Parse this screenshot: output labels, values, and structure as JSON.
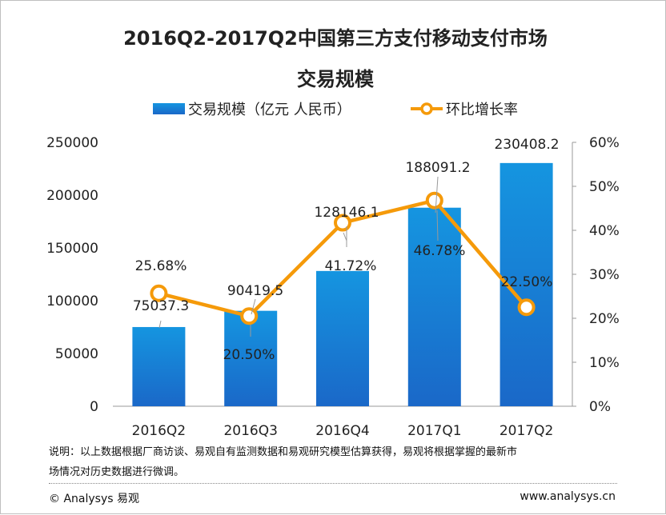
{
  "chart_data": {
    "type": "bar+line",
    "title_line1": "2016Q2-2017Q2中国第三方支付移动支付市场",
    "title_line2": "交易规模",
    "categories": [
      "2016Q2",
      "2016Q3",
      "2016Q4",
      "2017Q1",
      "2017Q2"
    ],
    "series": [
      {
        "name": "交易规模（亿元 人民币）",
        "type": "bar",
        "axis": "left",
        "values": [
          75037.3,
          90419.5,
          128146.1,
          188091.2,
          230408.2
        ],
        "labels": [
          "75037.3",
          "90419.5",
          "128146.1",
          "188091.2",
          "230408.2"
        ],
        "color": "#1a7fd4"
      },
      {
        "name": "环比增长率",
        "type": "line",
        "axis": "right",
        "values": [
          25.68,
          20.5,
          41.72,
          46.78,
          22.5
        ],
        "labels": [
          "25.68%",
          "20.50%",
          "41.72%",
          "46.78%",
          "22.50%"
        ],
        "color": "#f59a0a"
      }
    ],
    "left_axis": {
      "ylim": [
        0,
        250000
      ],
      "ticks": [
        "0",
        "50000",
        "100000",
        "150000",
        "200000",
        "250000"
      ]
    },
    "right_axis": {
      "ylim": [
        0,
        60
      ],
      "ticks": [
        "0%",
        "10%",
        "20%",
        "30%",
        "40%",
        "50%",
        "60%"
      ]
    },
    "grid": false,
    "legend_position": "top"
  },
  "notes": {
    "line1": "说明：以上数据根据厂商访谈、易观自有监测数据和易观研究模型估算获得，易观将根据掌握的最新市",
    "line2": "场情况对历史数据进行微调。"
  },
  "footer": {
    "copyright": "© Analysys 易观",
    "website": "www.analysys.cn"
  }
}
